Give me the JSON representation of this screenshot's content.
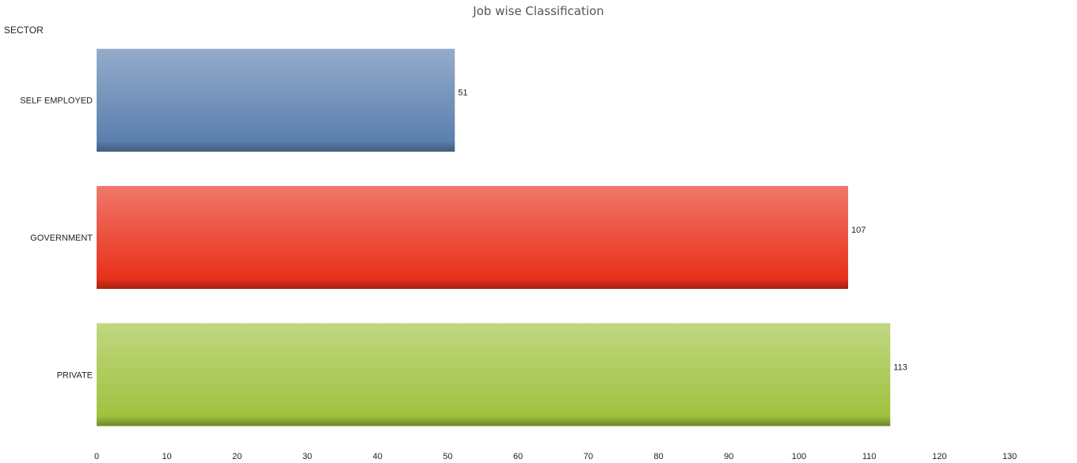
{
  "chart_data": {
    "type": "bar",
    "orientation": "horizontal",
    "title": "Job wise Classification",
    "ylabel": "SECTOR",
    "xlabel": "",
    "categories": [
      "SELF EMPLOYED",
      "GOVERNMENT",
      "PRIVATE"
    ],
    "values": [
      51,
      107,
      113
    ],
    "colors": [
      "#5b7fae",
      "#e8301a",
      "#9fc23e"
    ],
    "xlim": [
      0,
      130
    ],
    "xticks": [
      0,
      10,
      20,
      30,
      40,
      50,
      60,
      70,
      80,
      90,
      100,
      110,
      120,
      130
    ],
    "grid": false,
    "legend": "none",
    "data_labels": true
  }
}
